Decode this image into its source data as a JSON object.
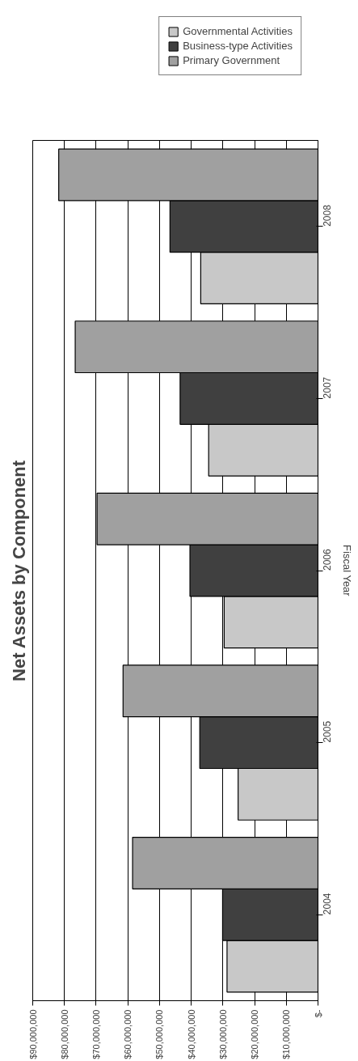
{
  "chart_data": {
    "type": "bar",
    "orientation": "horizontal",
    "title": "Net Assets by Component",
    "ylabel": "Fiscal Year",
    "categories": [
      "2008",
      "2007",
      "2006",
      "2005",
      "2004"
    ],
    "series": [
      {
        "name": "Governmental Activities",
        "color": "#c8c8c8",
        "values": [
          37000000,
          34500000,
          29600000,
          25200000,
          28700000
        ]
      },
      {
        "name": "Business-type Activities",
        "color": "#404040",
        "values": [
          46700000,
          43500000,
          40400000,
          37300000,
          30100000
        ]
      },
      {
        "name": "Primary Government",
        "color": "#a0a0a0",
        "values": [
          81800000,
          76600000,
          69700000,
          61500000,
          58500000
        ]
      }
    ],
    "xlim": [
      90000000,
      0
    ],
    "xticks": [
      {
        "value": 90000000,
        "label": "$90,000,000"
      },
      {
        "value": 80000000,
        "label": "$80,000,000"
      },
      {
        "value": 70000000,
        "label": "$70,000,000"
      },
      {
        "value": 60000000,
        "label": "$60,000,000"
      },
      {
        "value": 50000000,
        "label": "$50,000,000"
      },
      {
        "value": 40000000,
        "label": "$40,000,000"
      },
      {
        "value": 30000000,
        "label": "$30,000,000"
      },
      {
        "value": 20000000,
        "label": "$20,000,000"
      },
      {
        "value": 10000000,
        "label": "$10,000,000"
      },
      {
        "value": 0,
        "label": "$-"
      }
    ],
    "grid": "x",
    "legend": "top"
  }
}
